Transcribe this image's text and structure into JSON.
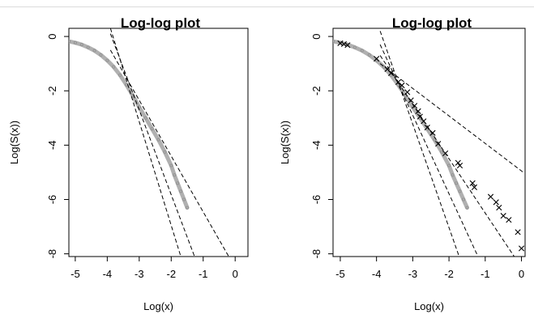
{
  "chart_data": [
    {
      "type": "scatter",
      "title": "Log-log plot",
      "xlabel": "Log(x)",
      "ylabel": "Log(S(x))",
      "xlim": [
        -5.2,
        0.4
      ],
      "ylim": [
        -8.1,
        0.3
      ],
      "xticks": [
        "-5",
        "-4",
        "-3",
        "-2",
        "-1",
        "0"
      ],
      "yticks": [
        "0",
        "-2",
        "-4",
        "-6",
        "-8"
      ],
      "grid": false,
      "series": [
        {
          "style": "gray-points",
          "color": "#b0b0b0",
          "points": [
            [
              -5.2,
              -0.18
            ],
            [
              -5.0,
              -0.23
            ],
            [
              -4.8,
              -0.3
            ],
            [
              -4.6,
              -0.4
            ],
            [
              -4.4,
              -0.52
            ],
            [
              -4.2,
              -0.68
            ],
            [
              -4.0,
              -0.88
            ],
            [
              -3.8,
              -1.12
            ],
            [
              -3.6,
              -1.42
            ],
            [
              -3.4,
              -1.78
            ],
            [
              -3.2,
              -2.18
            ],
            [
              -3.0,
              -2.6
            ],
            [
              -2.8,
              -3.0
            ],
            [
              -2.6,
              -3.4
            ],
            [
              -2.4,
              -3.8
            ],
            [
              -2.2,
              -4.25
            ],
            [
              -2.0,
              -4.75
            ],
            [
              -1.9,
              -5.1
            ],
            [
              -1.8,
              -5.4
            ],
            [
              -1.7,
              -5.7
            ],
            [
              -1.6,
              -6.0
            ],
            [
              -1.5,
              -6.3
            ]
          ]
        }
      ],
      "reference_lines": [
        {
          "style": "dashed",
          "points": [
            [
              -3.9,
              0.3
            ],
            [
              -1.7,
              -8.1
            ]
          ]
        },
        {
          "style": "dashed",
          "points": [
            [
              -3.9,
              0.1
            ],
            [
              -1.27,
              -8.1
            ]
          ]
        },
        {
          "style": "dashed",
          "points": [
            [
              -3.9,
              -0.5
            ],
            [
              -0.2,
              -8.1
            ]
          ]
        }
      ]
    },
    {
      "type": "scatter",
      "title": "Log-log plot",
      "xlabel": "Log(x)",
      "ylabel": "Log(S(x))",
      "xlim": [
        -5.2,
        0.1
      ],
      "ylim": [
        -8.1,
        0.3
      ],
      "xticks": [
        "-5",
        "-4",
        "-3",
        "-2",
        "-1",
        "0"
      ],
      "yticks": [
        "0",
        "-2",
        "-4",
        "-6",
        "-8"
      ],
      "grid": false,
      "series": [
        {
          "style": "gray-points",
          "color": "#b0b0b0",
          "points": [
            [
              -5.2,
              -0.18
            ],
            [
              -5.0,
              -0.23
            ],
            [
              -4.8,
              -0.3
            ],
            [
              -4.6,
              -0.4
            ],
            [
              -4.4,
              -0.52
            ],
            [
              -4.2,
              -0.68
            ],
            [
              -4.0,
              -0.88
            ],
            [
              -3.8,
              -1.12
            ],
            [
              -3.6,
              -1.42
            ],
            [
              -3.4,
              -1.78
            ],
            [
              -3.2,
              -2.18
            ],
            [
              -3.0,
              -2.6
            ],
            [
              -2.8,
              -3.0
            ],
            [
              -2.6,
              -3.4
            ],
            [
              -2.4,
              -3.8
            ],
            [
              -2.2,
              -4.25
            ],
            [
              -2.0,
              -4.75
            ],
            [
              -1.9,
              -5.1
            ],
            [
              -1.8,
              -5.4
            ],
            [
              -1.7,
              -5.7
            ],
            [
              -1.6,
              -6.0
            ],
            [
              -1.5,
              -6.3
            ]
          ]
        },
        {
          "style": "cross-markers",
          "color": "#000000",
          "points": [
            [
              -5.0,
              -0.25
            ],
            [
              -4.9,
              -0.28
            ],
            [
              -4.8,
              -0.32
            ],
            [
              -4.0,
              -0.82
            ],
            [
              -3.7,
              -1.2
            ],
            [
              -3.6,
              -1.35
            ],
            [
              -3.4,
              -1.68
            ],
            [
              -3.3,
              -1.8
            ],
            [
              -3.15,
              -2.05
            ],
            [
              -3.05,
              -2.35
            ],
            [
              -2.95,
              -2.55
            ],
            [
              -2.85,
              -2.75
            ],
            [
              -2.8,
              -2.95
            ],
            [
              -2.7,
              -3.12
            ],
            [
              -2.6,
              -3.35
            ],
            [
              -2.45,
              -3.55
            ],
            [
              -2.3,
              -3.95
            ],
            [
              -2.1,
              -4.3
            ],
            [
              -1.75,
              -4.65
            ],
            [
              -1.7,
              -4.75
            ],
            [
              -1.35,
              -5.4
            ],
            [
              -1.3,
              -5.55
            ],
            [
              -0.85,
              -5.9
            ],
            [
              -0.7,
              -6.1
            ],
            [
              -0.62,
              -6.3
            ],
            [
              -0.5,
              -6.6
            ],
            [
              -0.35,
              -6.75
            ],
            [
              -0.1,
              -7.2
            ],
            [
              0.0,
              -7.8
            ]
          ]
        }
      ],
      "reference_lines": [
        {
          "style": "dashed",
          "points": [
            [
              -3.9,
              0.2
            ],
            [
              -1.72,
              -8.1
            ]
          ]
        },
        {
          "style": "dashed",
          "points": [
            [
              -3.9,
              -0.3
            ],
            [
              -1.2,
              -8.1
            ]
          ]
        },
        {
          "style": "dashed",
          "points": [
            [
              -3.9,
              -0.7
            ],
            [
              -0.2,
              -8.1
            ]
          ]
        },
        {
          "style": "dashed",
          "points": [
            [
              -3.9,
              -1.0
            ],
            [
              0.05,
              -5.0
            ]
          ]
        }
      ]
    }
  ]
}
